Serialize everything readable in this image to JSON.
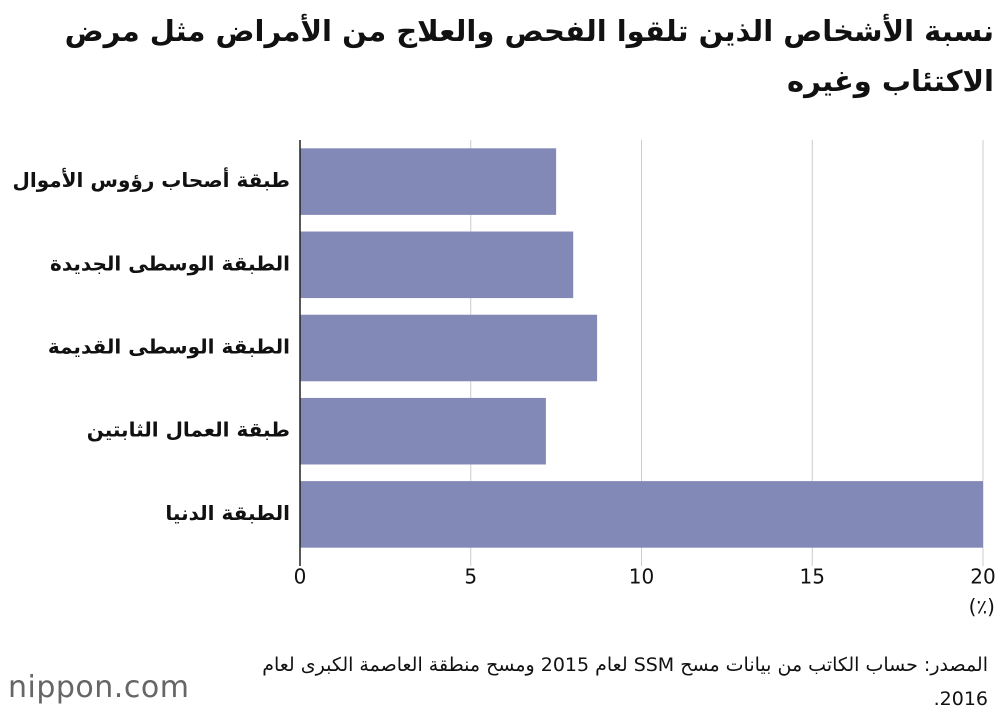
{
  "chart_data": {
    "type": "bar",
    "orientation": "horizontal",
    "title": "نسبة الأشخاص الذين تلقوا الفحص والعلاج من الأمراض مثل مرض الاكتئاب وغيره",
    "categories": [
      "طبقة أصحاب رؤوس الأموال",
      "الطبقة الوسطى الجديدة",
      "الطبقة الوسطى القديمة",
      "طبقة العمال الثابتين",
      "الطبقة الدنيا"
    ],
    "values": [
      7.5,
      8.0,
      8.7,
      7.2,
      20.0
    ],
    "color": "#8389b6",
    "xlim": [
      0,
      20
    ],
    "xticks": [
      0,
      5,
      10,
      15,
      20
    ],
    "grid": true,
    "x_label": "(٪)",
    "source": "المصدر: حساب الكاتب من بيانات مسح SSM لعام 2015 ومسح منطقة العاصمة الكبرى لعام 2016.",
    "logo": "nippon.com"
  }
}
